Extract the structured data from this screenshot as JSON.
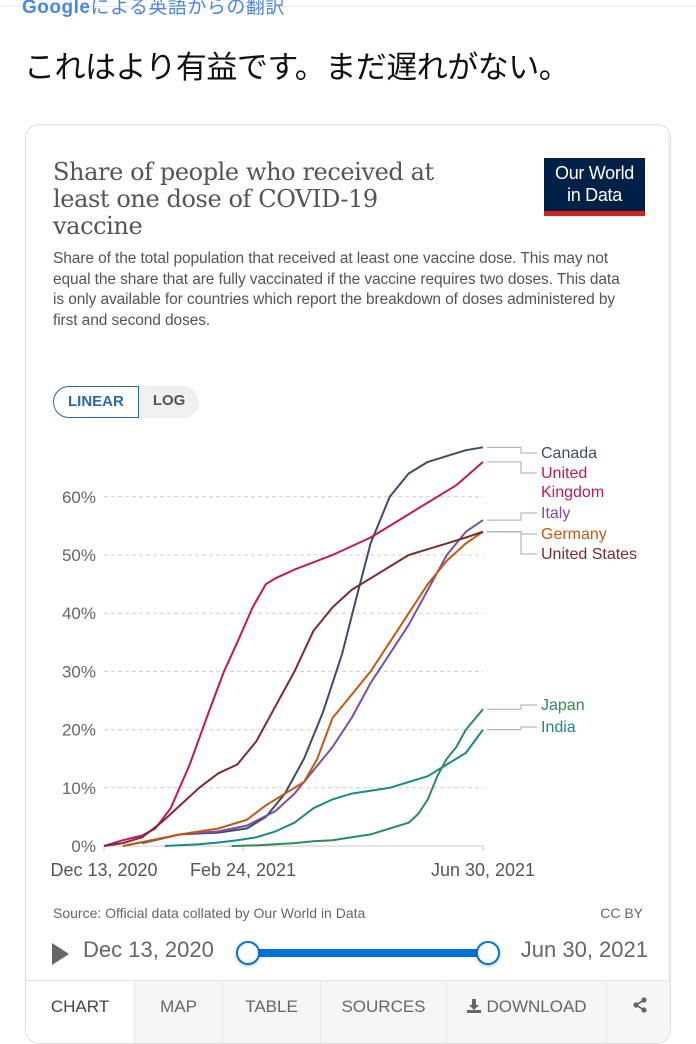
{
  "attribution": {
    "google_logo": "Google",
    "text": "による英語からの翻訳"
  },
  "tweet_text": "これはより有益です。まだ遅れがない。",
  "card": {
    "title": "Share of people who received at least one dose of COVID-19 vaccine",
    "subtitle": "Share of the total population that received at least one vaccine dose. This may not equal the share that are fully vaccinated if the vaccine requires two doses. This data is only available for countries which report the breakdown of doses administered by first and second doses.",
    "logo": {
      "line1": "Our World",
      "line2": "in Data",
      "bg": "#002147",
      "accent": "#ce261e"
    },
    "scale_toggle": {
      "options": [
        "LINEAR",
        "LOG"
      ],
      "selected": "LINEAR"
    },
    "source": "Source: Official data collated by Our World in Data",
    "license": "CC BY",
    "timeline": {
      "start_label": "Dec 13, 2020",
      "end_label": "Jun 30, 2021",
      "start_fraction": 0,
      "end_fraction": 1,
      "accent": "#0073d9"
    },
    "tabs": [
      {
        "label": "CHART",
        "active": true
      },
      {
        "label": "MAP",
        "active": false
      },
      {
        "label": "TABLE",
        "active": false
      },
      {
        "label": "SOURCES",
        "active": false
      },
      {
        "label": "DOWNLOAD",
        "active": false,
        "icon": "download-icon"
      },
      {
        "label": "",
        "active": false,
        "icon": "share-icon"
      }
    ]
  },
  "chart_data": {
    "type": "line",
    "title": "Share of people who received at least one dose of COVID-19 vaccine",
    "xlabel": "",
    "ylabel": "",
    "x_unit": "days since Dec 13, 2020",
    "x_range": [
      0,
      199
    ],
    "ylim": [
      0,
      70
    ],
    "yticks": [
      0,
      10,
      20,
      30,
      40,
      50,
      60
    ],
    "ytick_labels": [
      "0%",
      "10%",
      "20%",
      "30%",
      "40%",
      "50%",
      "60%"
    ],
    "xticks": [
      0,
      73,
      199
    ],
    "xtick_labels": [
      "Dec 13, 2020",
      "Feb 24, 2021",
      "Jun 30, 2021"
    ],
    "grid": "horizontal-dashed",
    "legend": "right (line-end labels)",
    "series": [
      {
        "name": "Canada",
        "color": "#3c4e66",
        "x": [
          20,
          40,
          60,
          75,
          85,
          95,
          105,
          115,
          125,
          132,
          140,
          150,
          160,
          170,
          180,
          190,
          199
        ],
        "y": [
          0.5,
          2,
          2.3,
          3,
          5,
          9,
          15,
          23,
          33,
          42,
          52,
          60,
          64,
          66,
          67,
          68,
          68.5
        ]
      },
      {
        "name": "United Kingdom",
        "color": "#c2185b",
        "x": [
          0,
          10,
          20,
          27,
          35,
          45,
          55,
          63,
          70,
          78,
          85,
          90,
          100,
          120,
          140,
          155,
          165,
          175,
          185,
          199
        ],
        "y": [
          0,
          1,
          1.8,
          3,
          6.5,
          14,
          23,
          30,
          35,
          41,
          45,
          46,
          47.5,
          50,
          53,
          56,
          58,
          60,
          62,
          66
        ]
      },
      {
        "name": "Italy",
        "color": "#7a4fa6",
        "x": [
          10,
          25,
          40,
          60,
          75,
          90,
          100,
          110,
          120,
          130,
          140,
          150,
          160,
          170,
          180,
          190,
          199
        ],
        "y": [
          0,
          1,
          2,
          2.5,
          3.5,
          6,
          9,
          13,
          17,
          22,
          28,
          33,
          38,
          44,
          50,
          54,
          56
        ]
      },
      {
        "name": "Germany",
        "color": "#c45a12",
        "x": [
          10,
          25,
          40,
          60,
          75,
          85,
          95,
          105,
          112,
          120,
          130,
          140,
          150,
          160,
          170,
          180,
          190,
          199
        ],
        "y": [
          0,
          1,
          2,
          3,
          4.5,
          7,
          9,
          11,
          15,
          22,
          26,
          30,
          35,
          40,
          45,
          49,
          52,
          54
        ]
      },
      {
        "name": "United States",
        "color": "#7b2d2d",
        "x": [
          0,
          10,
          20,
          30,
          40,
          50,
          60,
          70,
          80,
          90,
          100,
          110,
          120,
          130,
          140,
          150,
          160,
          170,
          180,
          190,
          199
        ],
        "y": [
          0,
          0.5,
          1.5,
          4,
          7,
          10,
          12.5,
          14,
          18,
          24,
          30,
          37,
          41,
          44,
          46,
          48,
          50,
          51,
          52,
          53,
          54
        ]
      },
      {
        "name": "Japan",
        "color": "#2e8b57",
        "x": [
          67,
          80,
          90,
          100,
          110,
          120,
          130,
          140,
          150,
          160,
          165,
          170,
          175,
          180,
          185,
          190,
          199
        ],
        "y": [
          0,
          0.1,
          0.3,
          0.5,
          0.8,
          1,
          1.5,
          2,
          3,
          4,
          5.5,
          8,
          12,
          15,
          17,
          20,
          23.5
        ]
      },
      {
        "name": "India",
        "color": "#1a8a83",
        "x": [
          32,
          50,
          60,
          70,
          80,
          90,
          100,
          110,
          120,
          130,
          140,
          150,
          160,
          170,
          180,
          190,
          199
        ],
        "y": [
          0,
          0.3,
          0.6,
          1,
          1.5,
          2.5,
          4,
          6.5,
          8,
          9,
          9.5,
          10,
          11,
          12,
          14,
          16,
          20
        ]
      }
    ]
  }
}
